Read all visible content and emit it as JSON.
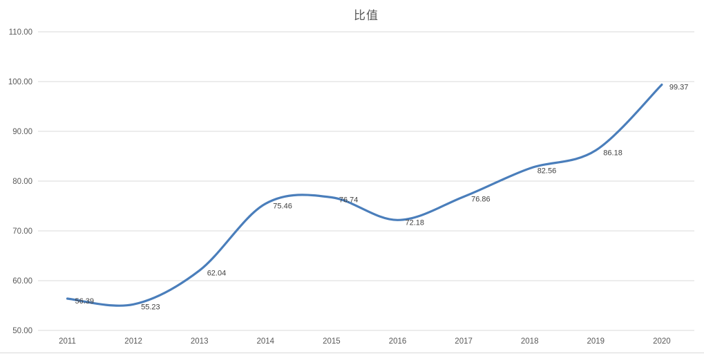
{
  "chart_data": {
    "type": "line",
    "title": "比值",
    "x": [
      2011,
      2012,
      2013,
      2014,
      2015,
      2016,
      2017,
      2018,
      2019,
      2020
    ],
    "x_tick_labels": [
      "2011",
      "2012",
      "2013",
      "2014",
      "2015",
      "2016",
      "2017",
      "2018",
      "2019",
      "2020"
    ],
    "series": [
      {
        "name": "比值",
        "values": [
          56.39,
          55.23,
          62.04,
          75.46,
          76.74,
          72.18,
          76.86,
          82.56,
          86.18,
          99.37
        ]
      }
    ],
    "data_labels": [
      "56.39",
      "55.23",
      "62.04",
      "75.46",
      "76.74",
      "72.18",
      "76.86",
      "82.56",
      "86.18",
      "99.37"
    ],
    "xlabel": "",
    "ylabel": "",
    "ylim": [
      50,
      110
    ],
    "ytick_step": 10,
    "ytick_labels": [
      "50.00",
      "60.00",
      "70.00",
      "80.00",
      "90.00",
      "100.00",
      "110.00"
    ],
    "grid": "horizontal-only",
    "legend": "none",
    "smooth": true,
    "colors": {
      "line": "#4A7EBB",
      "grid": "#D9D9D9",
      "axis_text": "#595959",
      "data_label_text": "#404040",
      "background": "#FFFFFF",
      "bottom_border": "#D9D9D9"
    }
  }
}
